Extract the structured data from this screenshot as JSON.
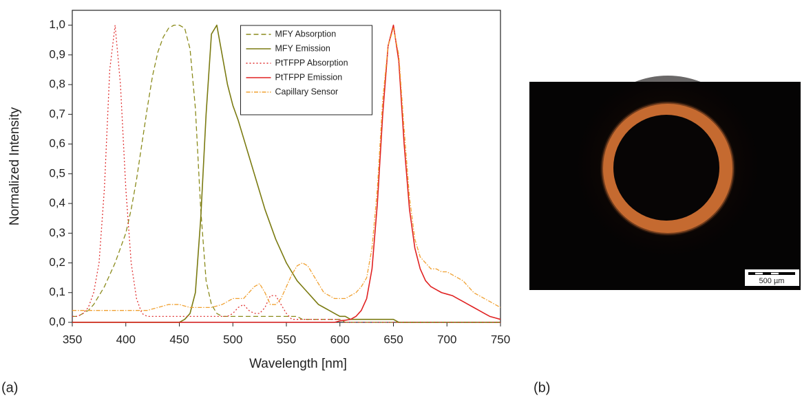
{
  "chart_data": {
    "type": "line",
    "x_label": "Wavelength [nm]",
    "y_label": "Normalized Intensity",
    "x": [
      350,
      355,
      360,
      365,
      370,
      375,
      380,
      385,
      390,
      395,
      400,
      405,
      410,
      415,
      420,
      425,
      430,
      435,
      440,
      445,
      450,
      455,
      460,
      465,
      470,
      475,
      480,
      485,
      490,
      495,
      500,
      505,
      510,
      515,
      520,
      525,
      530,
      535,
      540,
      545,
      550,
      555,
      560,
      565,
      570,
      575,
      580,
      585,
      590,
      595,
      600,
      605,
      610,
      615,
      620,
      625,
      630,
      635,
      640,
      645,
      650,
      655,
      660,
      665,
      670,
      675,
      680,
      685,
      690,
      695,
      700,
      705,
      710,
      715,
      720,
      725,
      730,
      735,
      740,
      745,
      750
    ],
    "series": [
      {
        "name": "MFY Absorption",
        "color": "#8a8a1a",
        "style": "dashed",
        "values": [
          0.02,
          0.02,
          0.03,
          0.04,
          0.06,
          0.09,
          0.12,
          0.16,
          0.2,
          0.25,
          0.3,
          0.38,
          0.48,
          0.6,
          0.72,
          0.83,
          0.91,
          0.96,
          0.99,
          1.0,
          1.0,
          0.99,
          0.92,
          0.72,
          0.38,
          0.14,
          0.06,
          0.03,
          0.02,
          0.02,
          0.02,
          0.02,
          0.02,
          0.02,
          0.02,
          0.02,
          0.02,
          0.02,
          0.02,
          0.02,
          0.02,
          0.02,
          0.02,
          0.01,
          0.01,
          0.01,
          0.01,
          0.01,
          0.01,
          0.01,
          0.01,
          0,
          0,
          0,
          0,
          0,
          0,
          0,
          0,
          0,
          0,
          0,
          0,
          0,
          0,
          0,
          0,
          0,
          0,
          0,
          0,
          0,
          0,
          0,
          0,
          0,
          0,
          0,
          0,
          0,
          0
        ]
      },
      {
        "name": "MFY Emission",
        "color": "#7a7a10",
        "style": "solid",
        "values": [
          0,
          0,
          0,
          0,
          0,
          0,
          0,
          0,
          0,
          0,
          0,
          0,
          0,
          0,
          0,
          0,
          0,
          0,
          0,
          0,
          0,
          0.01,
          0.03,
          0.1,
          0.35,
          0.7,
          0.97,
          1.0,
          0.9,
          0.8,
          0.73,
          0.68,
          0.62,
          0.56,
          0.5,
          0.44,
          0.38,
          0.33,
          0.28,
          0.24,
          0.2,
          0.17,
          0.14,
          0.12,
          0.1,
          0.08,
          0.06,
          0.05,
          0.04,
          0.03,
          0.02,
          0.02,
          0.01,
          0.01,
          0.01,
          0.01,
          0.01,
          0.01,
          0.01,
          0.01,
          0.01,
          0,
          0,
          0,
          0,
          0,
          0,
          0,
          0,
          0,
          0,
          0,
          0,
          0,
          0,
          0,
          0,
          0,
          0,
          0,
          0
        ]
      },
      {
        "name": "PtTFPP Absorption",
        "color": "#e03030",
        "style": "dotted",
        "values": [
          0.02,
          0.02,
          0.03,
          0.05,
          0.1,
          0.2,
          0.45,
          0.85,
          1.0,
          0.8,
          0.45,
          0.2,
          0.08,
          0.03,
          0.02,
          0.02,
          0.02,
          0.02,
          0.02,
          0.02,
          0.02,
          0.02,
          0.02,
          0.02,
          0.02,
          0.02,
          0.02,
          0.02,
          0.02,
          0.02,
          0.03,
          0.05,
          0.06,
          0.04,
          0.03,
          0.03,
          0.05,
          0.09,
          0.09,
          0.06,
          0.03,
          0.01,
          0.01,
          0.01,
          0.01,
          0.01,
          0.01,
          0.01,
          0.01,
          0.01,
          0.01,
          0,
          0,
          0,
          0,
          0,
          0,
          0,
          0,
          0,
          0,
          0,
          0,
          0,
          0,
          0,
          0,
          0,
          0,
          0,
          0,
          0,
          0,
          0,
          0,
          0,
          0,
          0,
          0,
          0,
          0
        ]
      },
      {
        "name": "PtTFPP Emission",
        "color": "#e02020",
        "style": "solid",
        "values": [
          0,
          0,
          0,
          0,
          0,
          0,
          0,
          0,
          0,
          0,
          0,
          0,
          0,
          0,
          0,
          0,
          0,
          0,
          0,
          0,
          0,
          0,
          0,
          0,
          0,
          0,
          0,
          0,
          0,
          0,
          0,
          0,
          0,
          0,
          0,
          0,
          0,
          0,
          0,
          0,
          0,
          0,
          0,
          0,
          0,
          0,
          0,
          0,
          0,
          0,
          0.005,
          0.007,
          0.01,
          0.02,
          0.04,
          0.08,
          0.18,
          0.4,
          0.7,
          0.93,
          1.0,
          0.88,
          0.6,
          0.38,
          0.25,
          0.18,
          0.14,
          0.12,
          0.11,
          0.1,
          0.095,
          0.09,
          0.08,
          0.07,
          0.06,
          0.05,
          0.04,
          0.03,
          0.02,
          0.015,
          0.01
        ]
      },
      {
        "name": "Capillary Sensor",
        "color": "#f0a030",
        "style": "dashdot",
        "values": [
          0.04,
          0.04,
          0.04,
          0.04,
          0.04,
          0.04,
          0.04,
          0.04,
          0.04,
          0.04,
          0.04,
          0.04,
          0.04,
          0.04,
          0.04,
          0.045,
          0.05,
          0.055,
          0.06,
          0.06,
          0.06,
          0.055,
          0.05,
          0.05,
          0.05,
          0.05,
          0.05,
          0.055,
          0.06,
          0.07,
          0.08,
          0.08,
          0.08,
          0.1,
          0.12,
          0.13,
          0.1,
          0.06,
          0.06,
          0.08,
          0.12,
          0.16,
          0.19,
          0.2,
          0.19,
          0.16,
          0.13,
          0.1,
          0.09,
          0.08,
          0.08,
          0.08,
          0.09,
          0.1,
          0.12,
          0.15,
          0.25,
          0.45,
          0.75,
          0.93,
          0.99,
          0.9,
          0.65,
          0.42,
          0.28,
          0.22,
          0.2,
          0.18,
          0.18,
          0.17,
          0.17,
          0.16,
          0.15,
          0.14,
          0.12,
          0.1,
          0.09,
          0.08,
          0.07,
          0.06,
          0.05
        ]
      }
    ],
    "xlim": [
      350,
      750
    ],
    "xticks": [
      350,
      400,
      450,
      500,
      550,
      600,
      650,
      700,
      750
    ],
    "ylim": [
      0,
      1.05
    ],
    "yticks": [
      {
        "value": 0,
        "label": "0,0"
      },
      {
        "value": 0.1,
        "label": "0,1"
      },
      {
        "value": 0.2,
        "label": "0,2"
      },
      {
        "value": 0.3,
        "label": "0,3"
      },
      {
        "value": 0.4,
        "label": "0,4"
      },
      {
        "value": 0.5,
        "label": "0,5"
      },
      {
        "value": 0.6,
        "label": "0,6"
      },
      {
        "value": 0.7,
        "label": "0,7"
      },
      {
        "value": 0.8,
        "label": "0,8"
      },
      {
        "value": 0.9,
        "label": "0,9"
      },
      {
        "value": 1.0,
        "label": "1,0"
      }
    ],
    "legend": "upper center",
    "grid": false
  },
  "panel_labels": [
    "(a)",
    "(b)"
  ],
  "photo": {
    "scale_bar": "500 µm"
  }
}
